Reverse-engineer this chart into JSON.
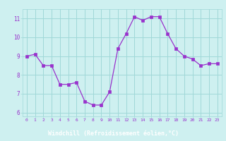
{
  "x": [
    0,
    1,
    2,
    3,
    4,
    5,
    6,
    7,
    8,
    9,
    10,
    11,
    12,
    13,
    14,
    15,
    16,
    17,
    18,
    19,
    20,
    21,
    22,
    23
  ],
  "y": [
    9.0,
    9.1,
    8.5,
    8.5,
    7.5,
    7.5,
    7.6,
    6.6,
    6.4,
    6.4,
    7.1,
    9.4,
    10.2,
    11.1,
    10.9,
    11.1,
    11.1,
    10.2,
    9.4,
    9.0,
    8.85,
    8.5,
    8.6,
    8.6
  ],
  "line_color": "#9932CC",
  "marker_color": "#9932CC",
  "bg_color": "#cef0f0",
  "grid_color": "#a0d8d8",
  "xlabel": "Windchill (Refroidissement éolien,°C)",
  "xlabel_color": "white",
  "xlabel_bg": "#8060a0",
  "tick_color": "#9932CC",
  "ylim": [
    5.8,
    11.5
  ],
  "yticks": [
    6,
    7,
    8,
    9,
    10,
    11
  ],
  "xlim": [
    -0.5,
    23.5
  ],
  "xticks": [
    0,
    1,
    2,
    3,
    4,
    5,
    6,
    7,
    8,
    9,
    10,
    11,
    12,
    13,
    14,
    15,
    16,
    17,
    18,
    19,
    20,
    21,
    22,
    23
  ]
}
